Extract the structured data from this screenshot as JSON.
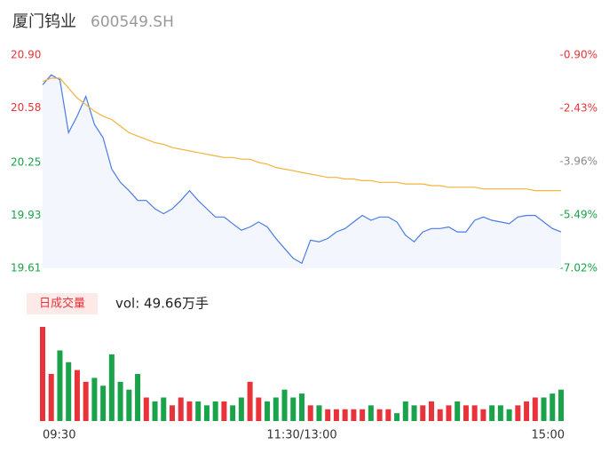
{
  "header": {
    "name": "厦门钨业",
    "code": "600549.SH"
  },
  "chart_data": {
    "type": "line",
    "x": [
      0,
      4,
      8,
      12,
      16,
      20,
      24,
      28,
      32,
      36,
      40,
      44,
      48,
      52,
      56,
      60,
      64,
      68,
      72,
      76,
      80,
      84,
      88,
      92,
      96,
      100,
      104,
      108,
      112,
      116,
      120,
      124,
      128,
      132,
      136,
      140,
      144,
      148,
      152,
      156,
      160,
      164,
      168,
      172,
      176,
      180,
      184,
      188,
      192,
      196,
      200,
      204,
      208,
      212,
      216,
      220,
      224,
      228,
      232,
      236,
      240
    ],
    "xlim": [
      0,
      240
    ],
    "xticks": [
      {
        "value": 0,
        "label": "09:30"
      },
      {
        "value": 120,
        "label": "11:30/13:00"
      },
      {
        "value": 240,
        "label": "15:00"
      }
    ],
    "ylim": [
      19.61,
      20.9
    ],
    "yticks": [
      {
        "value": 20.9,
        "label": "20.90"
      },
      20.58,
      20.25,
      19.93,
      19.61
    ],
    "y2lim": [
      -7.02,
      -0.9
    ],
    "y2ticks": [
      {
        "value": -0.9,
        "label": "-0.90%"
      },
      {
        "value": -2.43,
        "label": "-2.43%"
      },
      {
        "value": -3.96,
        "label": "-3.96%"
      },
      {
        "value": -5.49,
        "label": "-5.49%"
      },
      {
        "value": -7.02,
        "label": "-7.02%"
      }
    ],
    "up_color": "#e8333a",
    "down_color": "#1aa34a",
    "flat_color": "#888888",
    "series": [
      {
        "color": "#4b7be5",
        "values": [
          20.72,
          20.78,
          20.75,
          20.43,
          20.53,
          20.65,
          20.48,
          20.4,
          20.21,
          20.13,
          20.08,
          20.02,
          20.02,
          19.97,
          19.94,
          19.97,
          20.02,
          20.08,
          20.02,
          19.97,
          19.92,
          19.92,
          19.88,
          19.84,
          19.86,
          19.89,
          19.86,
          19.79,
          19.73,
          19.67,
          19.64,
          19.78,
          19.77,
          19.79,
          19.83,
          19.85,
          19.89,
          19.93,
          19.9,
          19.92,
          19.92,
          19.89,
          19.81,
          19.77,
          19.83,
          19.85,
          19.85,
          19.86,
          19.83,
          19.83,
          19.9,
          19.92,
          19.9,
          19.89,
          19.88,
          19.92,
          19.93,
          19.93,
          19.89,
          19.85,
          19.83
        ]
      },
      {
        "color": "#f3b33d",
        "values": [
          20.74,
          20.76,
          20.76,
          20.7,
          20.64,
          20.6,
          20.56,
          20.53,
          20.51,
          20.47,
          20.43,
          20.41,
          20.39,
          20.37,
          20.36,
          20.34,
          20.33,
          20.32,
          20.31,
          20.3,
          20.29,
          20.28,
          20.28,
          20.27,
          20.27,
          20.25,
          20.24,
          20.22,
          20.21,
          20.2,
          20.19,
          20.18,
          20.17,
          20.16,
          20.16,
          20.15,
          20.15,
          20.14,
          20.14,
          20.13,
          20.13,
          20.13,
          20.12,
          20.12,
          20.12,
          20.11,
          20.11,
          20.1,
          20.1,
          20.1,
          20.1,
          20.09,
          20.09,
          20.09,
          20.09,
          20.09,
          20.09,
          20.08,
          20.08,
          20.08,
          20.08
        ]
      }
    ],
    "volume": {
      "badge": "日成交量",
      "label": "vol: 49.66万手",
      "values": [
        2.4,
        1.2,
        1.8,
        1.5,
        1.3,
        1.0,
        1.1,
        0.9,
        1.7,
        1.0,
        0.8,
        1.2,
        0.6,
        0.5,
        0.6,
        0.4,
        0.6,
        0.5,
        0.5,
        0.4,
        0.5,
        0.5,
        0.4,
        0.6,
        1.0,
        0.6,
        0.5,
        0.6,
        0.8,
        0.6,
        0.7,
        0.4,
        0.4,
        0.3,
        0.3,
        0.3,
        0.3,
        0.3,
        0.4,
        0.3,
        0.3,
        0.2,
        0.5,
        0.4,
        0.4,
        0.5,
        0.3,
        0.4,
        0.5,
        0.4,
        0.4,
        0.3,
        0.4,
        0.4,
        0.3,
        0.4,
        0.5,
        0.6,
        0.6,
        0.7,
        0.8
      ]
    }
  }
}
